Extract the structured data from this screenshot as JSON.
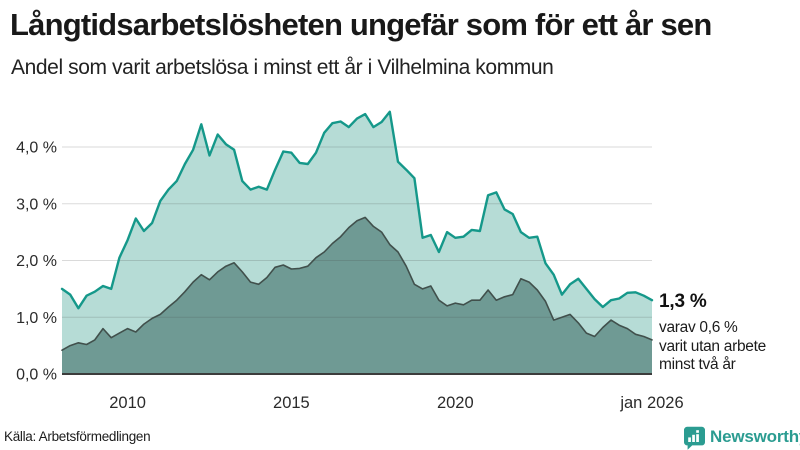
{
  "header": {
    "title": "Långtidsarbetslösheten ungefär som för ett år sen",
    "subtitle": "Andel som varit arbetslösa i minst ett år i Vilhelmina kommun"
  },
  "chart_data": {
    "type": "area",
    "title": "Långtidsarbetslösheten ungefär som för ett år sen",
    "subtitle": "Andel som varit arbetslösa i minst ett år i Vilhelmina kommun",
    "unit": "%",
    "x_start": 2008,
    "x_step": 0.25,
    "xlim": [
      2008,
      2026
    ],
    "ylim": [
      0,
      4.7
    ],
    "grid": true,
    "gridline_color": "rgba(70,70,70,0.2)",
    "axis_color": "#3c3c3c",
    "tick_color": "#2b2b2b",
    "yticks": [
      {
        "value": 0,
        "label": "0,0 %"
      },
      {
        "value": 1,
        "label": "1,0 %"
      },
      {
        "value": 2,
        "label": "2,0 %"
      },
      {
        "value": 3,
        "label": "3,0 %"
      },
      {
        "value": 4,
        "label": "4,0 %"
      }
    ],
    "xticks": [
      {
        "value": 2010,
        "label": "2010"
      },
      {
        "value": 2015,
        "label": "2015"
      },
      {
        "value": 2020,
        "label": "2020"
      },
      {
        "value": 2026,
        "label": "jan 2026"
      }
    ],
    "series": [
      {
        "name": "minst ett år",
        "end_value_label": "1,3 %",
        "line_color": "#15988a",
        "fill_color": "#b6dcd6",
        "line_width": 2.4,
        "values": [
          1.5,
          1.4,
          1.16,
          1.38,
          1.45,
          1.55,
          1.5,
          2.05,
          2.36,
          2.74,
          2.52,
          2.66,
          3.05,
          3.25,
          3.4,
          3.7,
          3.95,
          4.4,
          3.85,
          4.22,
          4.05,
          3.95,
          3.4,
          3.25,
          3.3,
          3.25,
          3.6,
          3.92,
          3.9,
          3.72,
          3.7,
          3.9,
          4.25,
          4.42,
          4.45,
          4.35,
          4.5,
          4.58,
          4.35,
          4.44,
          4.62,
          3.74,
          3.6,
          3.45,
          2.4,
          2.45,
          2.15,
          2.5,
          2.4,
          2.42,
          2.54,
          2.52,
          3.15,
          3.2,
          2.9,
          2.82,
          2.5,
          2.4,
          2.42,
          1.95,
          1.75,
          1.4,
          1.58,
          1.68,
          1.5,
          1.32,
          1.18,
          1.3,
          1.33,
          1.43,
          1.44,
          1.38,
          1.3
        ]
      },
      {
        "name": "minst två år",
        "end_value_label": "0,6 %",
        "line_color": "#41504c",
        "fill_color": "#6f9a94",
        "line_width": 1.6,
        "values": [
          0.42,
          0.5,
          0.55,
          0.52,
          0.6,
          0.8,
          0.64,
          0.72,
          0.8,
          0.74,
          0.88,
          0.98,
          1.05,
          1.18,
          1.3,
          1.45,
          1.62,
          1.75,
          1.66,
          1.8,
          1.9,
          1.96,
          1.8,
          1.62,
          1.58,
          1.7,
          1.88,
          1.92,
          1.85,
          1.86,
          1.9,
          2.05,
          2.15,
          2.3,
          2.42,
          2.58,
          2.7,
          2.76,
          2.6,
          2.5,
          2.28,
          2.15,
          1.9,
          1.58,
          1.5,
          1.55,
          1.3,
          1.2,
          1.25,
          1.22,
          1.3,
          1.3,
          1.48,
          1.3,
          1.36,
          1.4,
          1.68,
          1.62,
          1.48,
          1.28,
          0.95,
          1.0,
          1.05,
          0.9,
          0.72,
          0.66,
          0.82,
          0.95,
          0.86,
          0.8,
          0.7,
          0.66,
          0.6
        ]
      }
    ]
  },
  "annotation": {
    "value": "1,3 %",
    "lines": [
      "varav 0,6 %",
      "varit utan arbete",
      "minst två år"
    ]
  },
  "footer": {
    "source": "Källa: Arbetsförmedlingen",
    "brand": "Newsworthy"
  },
  "colors": {
    "accent": "#15988a",
    "light_fill": "#b6dcd6",
    "dark_fill": "#6f9a94",
    "brand": "#2b9c91"
  }
}
